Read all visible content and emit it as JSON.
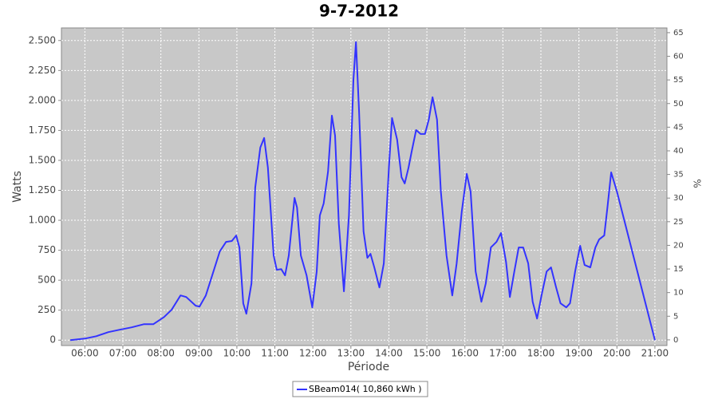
{
  "chart_data": {
    "type": "line",
    "title": "9-7-2012",
    "x_label": "Période",
    "y_label": "Watts",
    "y2_label": "%",
    "x": [
      "05:37",
      "06:00",
      "06:18",
      "06:37",
      "06:55",
      "07:14",
      "07:33",
      "07:48",
      "08:05",
      "08:17",
      "08:31",
      "08:40",
      "08:55",
      "09:01",
      "09:11",
      "09:21",
      "09:33",
      "09:43",
      "09:52",
      "09:59",
      "10:04",
      "10:10",
      "10:15",
      "10:23",
      "10:29",
      "10:37",
      "10:43",
      "10:49",
      "10:58",
      "11:03",
      "11:10",
      "11:16",
      "11:22",
      "11:31",
      "11:35",
      "11:41",
      "11:50",
      "11:59",
      "12:06",
      "12:11",
      "12:17",
      "12:24",
      "12:30",
      "12:35",
      "12:41",
      "12:49",
      "12:57",
      "13:04",
      "13:08",
      "13:13",
      "13:20",
      "13:26",
      "13:31",
      "13:37",
      "13:45",
      "13:52",
      "14:00",
      "14:05",
      "14:13",
      "14:20",
      "14:25",
      "14:31",
      "14:36",
      "14:43",
      "14:50",
      "14:57",
      "15:03",
      "15:09",
      "15:16",
      "15:22",
      "15:31",
      "15:40",
      "15:47",
      "15:55",
      "16:03",
      "16:09",
      "16:17",
      "16:26",
      "16:33",
      "16:41",
      "16:50",
      "16:57",
      "17:05",
      "17:11",
      "17:18",
      "17:25",
      "17:32",
      "17:40",
      "17:47",
      "17:54",
      "18:01",
      "18:09",
      "18:16",
      "18:24",
      "18:31",
      "18:40",
      "18:46",
      "18:54",
      "19:02",
      "19:09",
      "19:18",
      "19:26",
      "19:32",
      "19:40",
      "19:45",
      "19:51",
      "20:00",
      "21:00"
    ],
    "series": [
      {
        "name": "SBeam014( 10,860 kWh )",
        "color": "#3333ff",
        "values": [
          0,
          13,
          33,
          67,
          87,
          107,
          133,
          133,
          193,
          253,
          373,
          360,
          287,
          280,
          373,
          540,
          740,
          820,
          827,
          873,
          773,
          307,
          220,
          473,
          1273,
          1607,
          1687,
          1440,
          707,
          587,
          593,
          540,
          707,
          1187,
          1107,
          707,
          540,
          273,
          573,
          1040,
          1140,
          1407,
          1873,
          1707,
          973,
          407,
          1040,
          2173,
          2487,
          1907,
          907,
          687,
          720,
          607,
          440,
          640,
          1440,
          1853,
          1673,
          1360,
          1307,
          1440,
          1573,
          1753,
          1720,
          1720,
          1840,
          2027,
          1840,
          1240,
          707,
          373,
          640,
          1073,
          1387,
          1240,
          573,
          320,
          473,
          773,
          820,
          893,
          653,
          360,
          573,
          773,
          773,
          640,
          320,
          180,
          373,
          573,
          607,
          440,
          307,
          273,
          307,
          573,
          787,
          627,
          607,
          773,
          840,
          873,
          1107,
          1400,
          1240,
          0
        ]
      }
    ],
    "xlim": [
      "05:23",
      "21:19"
    ],
    "xticks": [
      "06:00",
      "07:00",
      "08:00",
      "09:00",
      "10:00",
      "11:00",
      "12:00",
      "13:00",
      "14:00",
      "15:00",
      "16:00",
      "17:00",
      "18:00",
      "19:00",
      "20:00",
      "21:00"
    ],
    "ylim": [
      -45,
      2605
    ],
    "yticks": [
      0,
      250,
      500,
      750,
      {
        "value": 1000,
        "label": "1.000"
      },
      {
        "value": 1250,
        "label": "1.250"
      },
      {
        "value": 1500,
        "label": "1.500"
      },
      {
        "value": 1750,
        "label": "1.750"
      },
      {
        "value": 2000,
        "label": "2.000"
      },
      {
        "value": 2250,
        "label": "2.250"
      },
      {
        "value": 2500,
        "label": "2.500"
      }
    ],
    "y2lim": [
      -1.2,
      66
    ],
    "y2ticks": [
      0,
      5,
      10,
      15,
      20,
      25,
      30,
      35,
      40,
      45,
      50,
      55,
      60,
      65
    ],
    "grid": true
  }
}
